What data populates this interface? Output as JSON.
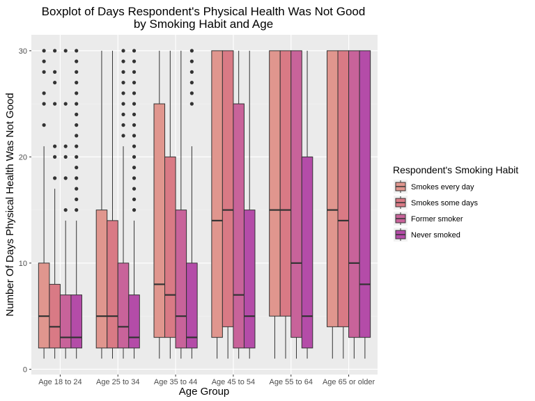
{
  "chart_data": {
    "type": "boxplot",
    "title": [
      "Boxplot of Days Respondent's Physical Health Was Not Good",
      "by Smoking Habit and Age"
    ],
    "xlabel": "Age Group",
    "ylabel": "Number Of Days Physical Health Was Not Good",
    "ylim": [
      -0.5,
      31.5
    ],
    "yticks": [
      0,
      10,
      20,
      30
    ],
    "grid": true,
    "legend": {
      "title": "Respondent's Smoking Habit",
      "position": "right"
    },
    "categories": [
      "Age 18 to 24",
      "Age 25 to 34",
      "Age 35 to 44",
      "Age 45 to 54",
      "Age 55 to 64",
      "Age 65 or older"
    ],
    "series": [
      {
        "name": "Smokes every day",
        "color": "#E0968E",
        "boxes": [
          {
            "whisker_low": 1,
            "q1": 2,
            "median": 5,
            "q3": 10,
            "whisker_high": 21,
            "outliers": [
              23,
              25,
              26,
              28,
              29,
              30
            ]
          },
          {
            "whisker_low": 1,
            "q1": 2,
            "median": 5,
            "q3": 15,
            "whisker_high": 30,
            "outliers": []
          },
          {
            "whisker_low": 1,
            "q1": 3,
            "median": 8,
            "q3": 25,
            "whisker_high": 30,
            "outliers": []
          },
          {
            "whisker_low": 1,
            "q1": 3,
            "median": 14,
            "q3": 30,
            "whisker_high": 30,
            "outliers": []
          },
          {
            "whisker_low": 1,
            "q1": 5,
            "median": 15,
            "q3": 30,
            "whisker_high": 30,
            "outliers": []
          },
          {
            "whisker_low": 1,
            "q1": 4,
            "median": 15,
            "q3": 30,
            "whisker_high": 30,
            "outliers": []
          }
        ]
      },
      {
        "name": "Smokes some days",
        "color": "#D97A85",
        "boxes": [
          {
            "whisker_low": 1,
            "q1": 2,
            "median": 4,
            "q3": 8,
            "whisker_high": 17,
            "outliers": [
              18,
              20,
              21,
              25,
              27,
              28,
              30
            ]
          },
          {
            "whisker_low": 1,
            "q1": 2,
            "median": 5,
            "q3": 14,
            "whisker_high": 30,
            "outliers": []
          },
          {
            "whisker_low": 1,
            "q1": 3,
            "median": 7,
            "q3": 20,
            "whisker_high": 30,
            "outliers": []
          },
          {
            "whisker_low": 1,
            "q1": 4,
            "median": 15,
            "q3": 30,
            "whisker_high": 30,
            "outliers": []
          },
          {
            "whisker_low": 1,
            "q1": 5,
            "median": 15,
            "q3": 30,
            "whisker_high": 30,
            "outliers": []
          },
          {
            "whisker_low": 1,
            "q1": 4,
            "median": 14,
            "q3": 30,
            "whisker_high": 30,
            "outliers": []
          }
        ]
      },
      {
        "name": "Former smoker",
        "color": "#C8639A",
        "boxes": [
          {
            "whisker_low": 1,
            "q1": 2,
            "median": 3,
            "q3": 7,
            "whisker_high": 14,
            "outliers": [
              15,
              18,
              20,
              21,
              25,
              30
            ]
          },
          {
            "whisker_low": 1,
            "q1": 2,
            "median": 4,
            "q3": 10,
            "whisker_high": 21,
            "outliers": [
              22,
              23,
              24,
              25,
              26,
              27,
              28,
              29,
              30
            ]
          },
          {
            "whisker_low": 1,
            "q1": 2,
            "median": 5,
            "q3": 15,
            "whisker_high": 30,
            "outliers": []
          },
          {
            "whisker_low": 1,
            "q1": 2,
            "median": 7,
            "q3": 25,
            "whisker_high": 30,
            "outliers": []
          },
          {
            "whisker_low": 1,
            "q1": 3,
            "median": 10,
            "q3": 30,
            "whisker_high": 30,
            "outliers": []
          },
          {
            "whisker_low": 1,
            "q1": 3,
            "median": 10,
            "q3": 30,
            "whisker_high": 30,
            "outliers": []
          }
        ]
      },
      {
        "name": "Never smoked",
        "color": "#B44CA8",
        "boxes": [
          {
            "whisker_low": 1,
            "q1": 2,
            "median": 3,
            "q3": 7,
            "whisker_high": 14,
            "outliers": [
              15,
              16,
              17,
              18,
              19,
              20,
              21,
              22,
              23,
              24,
              25,
              26,
              27,
              28,
              29,
              30
            ]
          },
          {
            "whisker_low": 1,
            "q1": 2,
            "median": 3,
            "q3": 7,
            "whisker_high": 14,
            "outliers": [
              15,
              16,
              17,
              18,
              19,
              20,
              21,
              22,
              23,
              24,
              25,
              26,
              27,
              28,
              29,
              30
            ]
          },
          {
            "whisker_low": 1,
            "q1": 2,
            "median": 3,
            "q3": 10,
            "whisker_high": 21,
            "outliers": [
              25,
              26,
              27,
              28,
              29,
              30
            ]
          },
          {
            "whisker_low": 1,
            "q1": 2,
            "median": 5,
            "q3": 15,
            "whisker_high": 30,
            "outliers": []
          },
          {
            "whisker_low": 1,
            "q1": 2,
            "median": 5,
            "q3": 20,
            "whisker_high": 30,
            "outliers": []
          },
          {
            "whisker_low": 1,
            "q1": 3,
            "median": 8,
            "q3": 30,
            "whisker_high": 30,
            "outliers": []
          }
        ]
      }
    ]
  }
}
